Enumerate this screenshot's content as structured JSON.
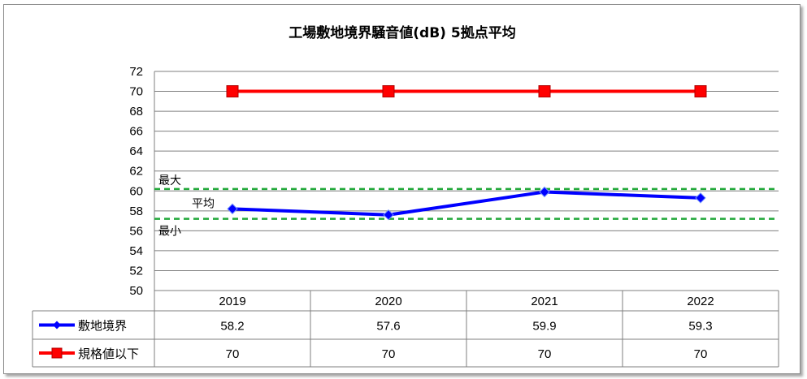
{
  "chart_data": {
    "type": "line",
    "title": "工場敷地境界騒音値(dB) 5拠点平均",
    "categories": [
      "2019",
      "2020",
      "2021",
      "2022"
    ],
    "ylim": [
      50,
      72
    ],
    "ystep": 2,
    "grid": true,
    "legend_placement": "data-table-left",
    "series": [
      {
        "name": "敷地境界",
        "values": [
          58.2,
          57.6,
          59.9,
          59.3
        ],
        "color": "#0000ff",
        "marker": "diamond"
      },
      {
        "name": "規格値以下",
        "values": [
          70,
          70,
          70,
          70
        ],
        "color": "#ff0000",
        "marker": "square"
      }
    ],
    "reference_lines": [
      {
        "label": "最大",
        "value": 60.2,
        "color": "#22a83a"
      },
      {
        "label": "最小",
        "value": 57.2,
        "color": "#22a83a"
      }
    ],
    "annotations": [
      {
        "text": "平均"
      }
    ],
    "table_rows": [
      {
        "series": "敷地境界",
        "cells": [
          "58.2",
          "57.6",
          "59.9",
          "59.3"
        ]
      },
      {
        "series": "規格値以下",
        "cells": [
          "70",
          "70",
          "70",
          "70"
        ]
      }
    ]
  }
}
